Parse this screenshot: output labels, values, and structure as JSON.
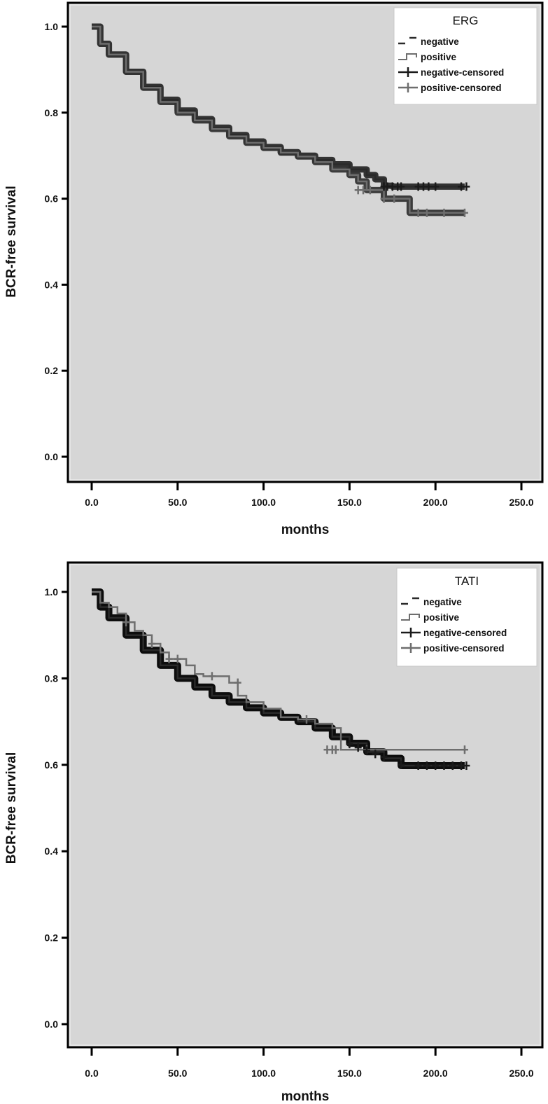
{
  "colors": {
    "plot_background": "#d6d6d6",
    "frame": "#000000",
    "negative": "#2a2a2a",
    "positive": "#6e6e6e",
    "legend_background": "#ffffff"
  },
  "charts": [
    {
      "title": "ERG",
      "xlabel": "months",
      "ylabel": "BCR-free survival",
      "x_ticks": [
        "0.0",
        "50.0",
        "100.0",
        "150.0",
        "200.0",
        "250.0"
      ],
      "y_ticks": [
        "0.0",
        "0.2",
        "0.4",
        "0.6",
        "0.8",
        "1.0"
      ],
      "legend": {
        "title": "ERG",
        "items": [
          "negative",
          "positive",
          "negative-censored",
          "positive-censored"
        ]
      }
    },
    {
      "title": "TATI",
      "xlabel": "months",
      "ylabel": "BCR-free survival",
      "x_ticks": [
        "0.0",
        "50.0",
        "100.0",
        "150.0",
        "200.0",
        "250.0"
      ],
      "y_ticks": [
        "0.0",
        "0.2",
        "0.4",
        "0.6",
        "0.8",
        "1.0"
      ],
      "legend": {
        "title": "TATI",
        "items": [
          "negative",
          "positive",
          "negative-censored",
          "positive-censored"
        ]
      }
    }
  ],
  "chart_data": [
    {
      "type": "line",
      "subtype": "kaplan-meier step",
      "title": "ERG",
      "xlabel": "months",
      "ylabel": "BCR-free survival",
      "xlim": [
        -10,
        260
      ],
      "ylim": [
        -0.05,
        1.05
      ],
      "x_ticks": [
        0,
        50,
        100,
        150,
        200,
        250
      ],
      "y_ticks": [
        0.0,
        0.2,
        0.4,
        0.6,
        0.8,
        1.0
      ],
      "grid": false,
      "legend_position": "upper right",
      "legend_title": "ERG",
      "series": [
        {
          "name": "negative",
          "x": [
            0,
            5,
            10,
            20,
            30,
            40,
            50,
            60,
            70,
            80,
            90,
            100,
            110,
            120,
            130,
            140,
            150,
            160,
            165,
            170,
            175,
            217
          ],
          "y": [
            1.0,
            0.96,
            0.935,
            0.895,
            0.86,
            0.83,
            0.805,
            0.785,
            0.765,
            0.748,
            0.733,
            0.72,
            0.708,
            0.7,
            0.69,
            0.68,
            0.668,
            0.655,
            0.645,
            0.63,
            0.628,
            0.628
          ]
        },
        {
          "name": "positive",
          "x": [
            0,
            5,
            10,
            20,
            30,
            40,
            50,
            60,
            70,
            80,
            90,
            100,
            110,
            120,
            130,
            140,
            150,
            155,
            160,
            170,
            185,
            217
          ],
          "y": [
            1.0,
            0.96,
            0.935,
            0.895,
            0.858,
            0.825,
            0.8,
            0.782,
            0.762,
            0.745,
            0.73,
            0.718,
            0.707,
            0.698,
            0.685,
            0.668,
            0.655,
            0.64,
            0.62,
            0.6,
            0.567,
            0.567
          ]
        },
        {
          "name": "negative-censored",
          "x": [
            170,
            172,
            175,
            178,
            180,
            190,
            193,
            196,
            200,
            215,
            218
          ],
          "y": [
            0.628,
            0.628,
            0.628,
            0.628,
            0.628,
            0.628,
            0.628,
            0.628,
            0.628,
            0.628,
            0.628
          ]
        },
        {
          "name": "positive-censored",
          "x": [
            155,
            158,
            162,
            170,
            176,
            190,
            195,
            205,
            217
          ],
          "y": [
            0.62,
            0.62,
            0.62,
            0.6,
            0.6,
            0.567,
            0.567,
            0.567,
            0.567
          ]
        }
      ]
    },
    {
      "type": "line",
      "subtype": "kaplan-meier step",
      "title": "TATI",
      "xlabel": "months",
      "ylabel": "BCR-free survival",
      "xlim": [
        -10,
        260
      ],
      "ylim": [
        -0.05,
        1.05
      ],
      "x_ticks": [
        0,
        50,
        100,
        150,
        200,
        250
      ],
      "y_ticks": [
        0.0,
        0.2,
        0.4,
        0.6,
        0.8,
        1.0
      ],
      "grid": false,
      "legend_position": "upper right",
      "legend_title": "TATI",
      "series": [
        {
          "name": "negative",
          "x": [
            0,
            5,
            10,
            20,
            30,
            40,
            50,
            60,
            70,
            80,
            90,
            100,
            110,
            120,
            130,
            140,
            150,
            160,
            170,
            180,
            217
          ],
          "y": [
            1.0,
            0.965,
            0.94,
            0.9,
            0.865,
            0.83,
            0.8,
            0.78,
            0.76,
            0.745,
            0.732,
            0.72,
            0.71,
            0.7,
            0.685,
            0.665,
            0.65,
            0.63,
            0.615,
            0.598,
            0.598
          ]
        },
        {
          "name": "positive",
          "x": [
            0,
            5,
            10,
            15,
            20,
            25,
            30,
            35,
            40,
            45,
            50,
            55,
            60,
            65,
            70,
            80,
            85,
            90,
            100,
            110,
            120,
            130,
            140,
            145,
            217
          ],
          "y": [
            1.0,
            0.975,
            0.965,
            0.95,
            0.93,
            0.91,
            0.9,
            0.88,
            0.86,
            0.845,
            0.845,
            0.83,
            0.81,
            0.805,
            0.805,
            0.79,
            0.76,
            0.745,
            0.73,
            0.71,
            0.705,
            0.695,
            0.685,
            0.635,
            0.635
          ]
        },
        {
          "name": "negative-censored",
          "x": [
            150,
            155,
            160,
            165,
            170,
            180,
            190,
            195,
            200,
            205,
            210,
            215,
            218
          ],
          "y": [
            0.648,
            0.64,
            0.633,
            0.625,
            0.618,
            0.6,
            0.598,
            0.598,
            0.598,
            0.598,
            0.598,
            0.598,
            0.598
          ]
        },
        {
          "name": "positive-censored",
          "x": [
            20,
            35,
            45,
            50,
            70,
            85,
            125,
            137,
            140,
            142,
            160,
            217
          ],
          "y": [
            0.93,
            0.88,
            0.845,
            0.845,
            0.805,
            0.79,
            0.705,
            0.635,
            0.635,
            0.635,
            0.635,
            0.635
          ]
        }
      ]
    }
  ]
}
